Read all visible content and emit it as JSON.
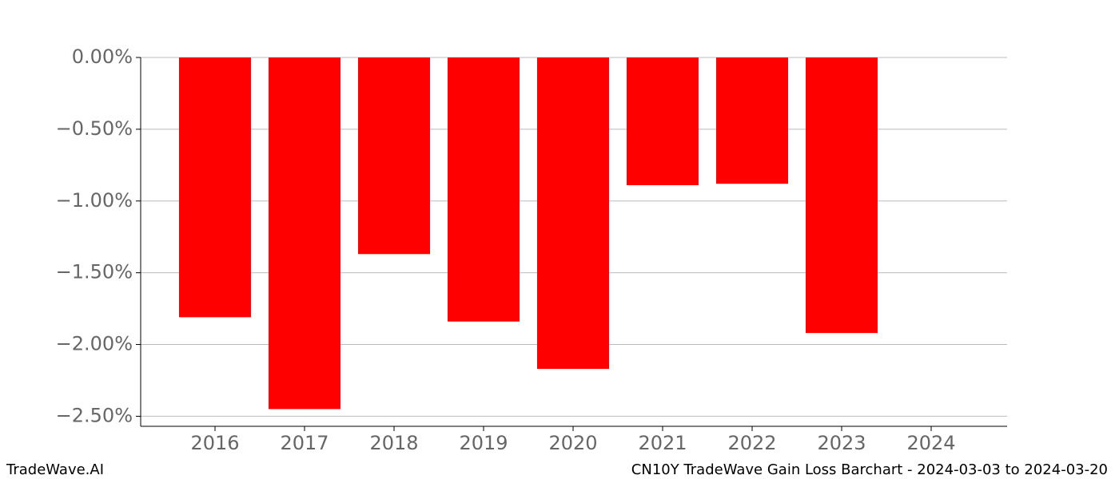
{
  "chart_data": {
    "type": "bar",
    "title": "CN10Y TradeWave Gain Loss Barchart - 2024-03-03 to 2024-03-20",
    "watermark": "TradeWave.AI",
    "categories": [
      "2016",
      "2017",
      "2018",
      "2019",
      "2020",
      "2021",
      "2022",
      "2023",
      "2024"
    ],
    "values": [
      -1.81,
      -2.45,
      -1.37,
      -1.84,
      -2.17,
      -0.89,
      -0.88,
      -1.92,
      null
    ],
    "color": "#ff0000",
    "ylim": [
      -2.57,
      0
    ],
    "yticks": [
      {
        "value": 0,
        "label": "0.00%"
      },
      {
        "value": -0.5,
        "label": "−0.50%"
      },
      {
        "value": -1,
        "label": "−1.00%"
      },
      {
        "value": -1.5,
        "label": "−1.50%"
      },
      {
        "value": -2,
        "label": "−2.00%"
      },
      {
        "value": -2.5,
        "label": "−2.50%"
      }
    ],
    "grid": true
  }
}
